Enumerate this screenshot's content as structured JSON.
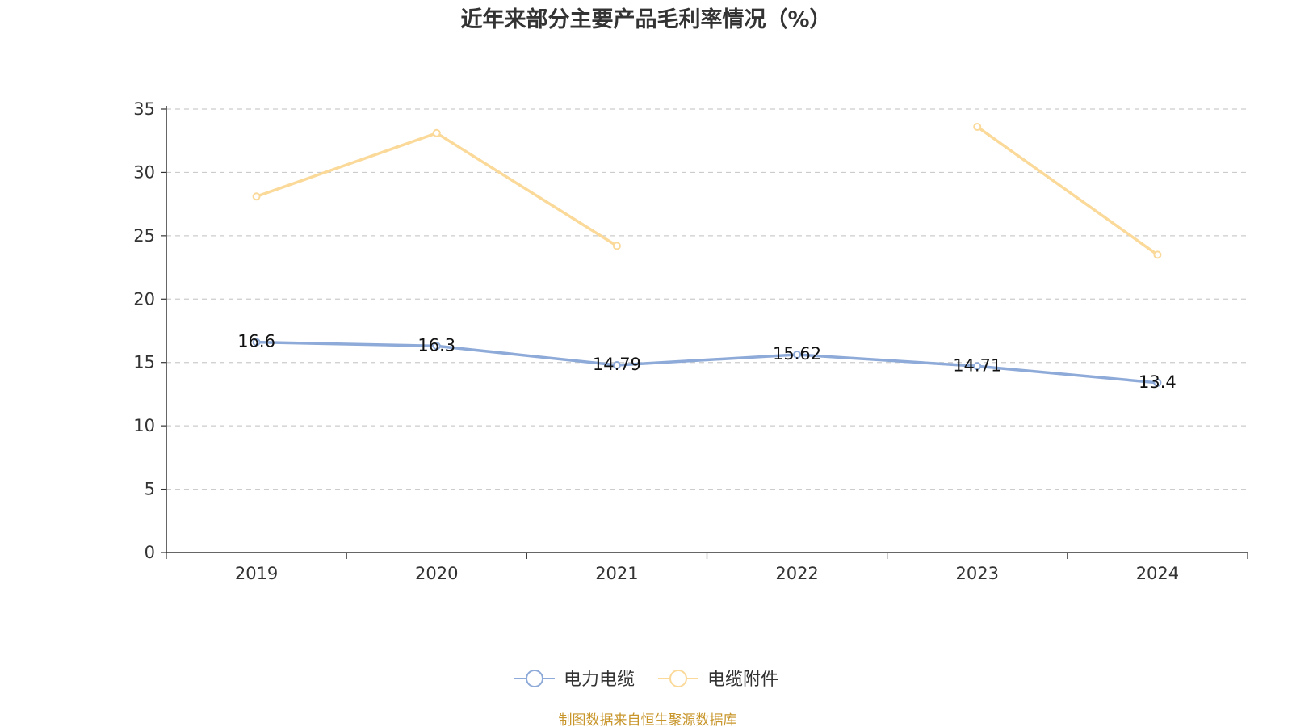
{
  "chart_data": {
    "type": "line",
    "title": "近年来部分主要产品毛利率情况（%）",
    "categories": [
      "2019",
      "2020",
      "2021",
      "2022",
      "2023",
      "2024"
    ],
    "ylim": [
      0,
      35
    ],
    "yticks": [
      0,
      5,
      10,
      15,
      20,
      25,
      30,
      35
    ],
    "grid": true,
    "legend_position": "bottom-center",
    "series": [
      {
        "name": "电力电缆",
        "color": "#8eaad8",
        "values": [
          16.6,
          16.3,
          14.79,
          15.62,
          14.71,
          13.4
        ],
        "labels": [
          "16.6",
          "16.3",
          "14.79",
          "15.62",
          "14.71",
          "13.4"
        ],
        "show_labels": true
      },
      {
        "name": "电缆附件",
        "color": "#fad999",
        "values": [
          28.1,
          33.1,
          24.2,
          null,
          33.6,
          23.5
        ],
        "show_labels": false
      }
    ],
    "source": "制图数据来自恒生聚源数据库"
  }
}
